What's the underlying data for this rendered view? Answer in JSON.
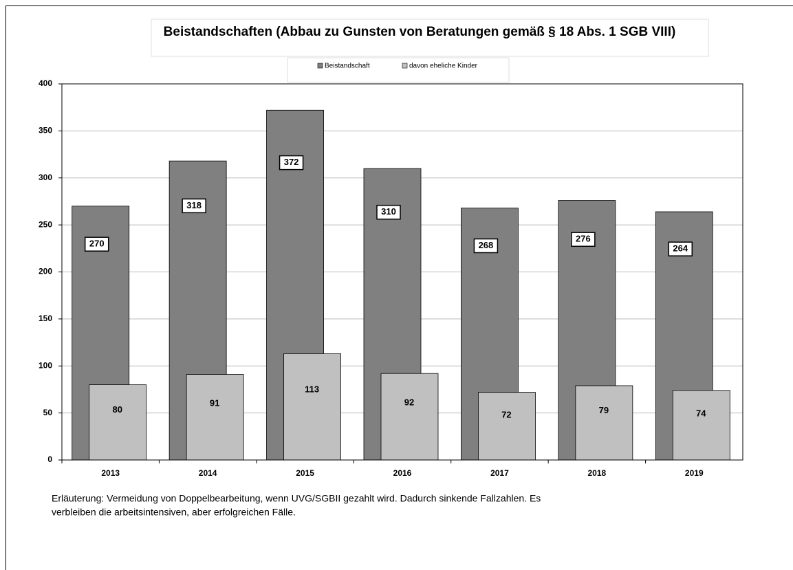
{
  "chart_data": {
    "type": "bar",
    "title": "Beistandschaften (Abbau zu Gunsten von Beratungen gemäß § 18 Abs. 1 SGB VIII)",
    "categories": [
      "2013",
      "2014",
      "2015",
      "2016",
      "2017",
      "2018",
      "2019"
    ],
    "series": [
      {
        "name": "Beistandschaft",
        "color": "#808080",
        "values": [
          270,
          318,
          372,
          310,
          268,
          276,
          264
        ]
      },
      {
        "name": "davon eheliche Kinder",
        "color": "#c0c0c0",
        "values": [
          80,
          91,
          113,
          92,
          72,
          79,
          74
        ]
      }
    ],
    "ylim": [
      0,
      400
    ],
    "yticks": [
      0,
      50,
      100,
      150,
      200,
      250,
      300,
      350,
      400
    ],
    "grid": true,
    "note": [
      "Erläuterung: Vermeidung von Doppelbearbeitung, wenn UVG/SGBII gezahlt wird. Dadurch sinkende Fallzahlen. Es",
      "verbleiben die arbeitsintensiven, aber erfolgreichen Fälle."
    ]
  }
}
